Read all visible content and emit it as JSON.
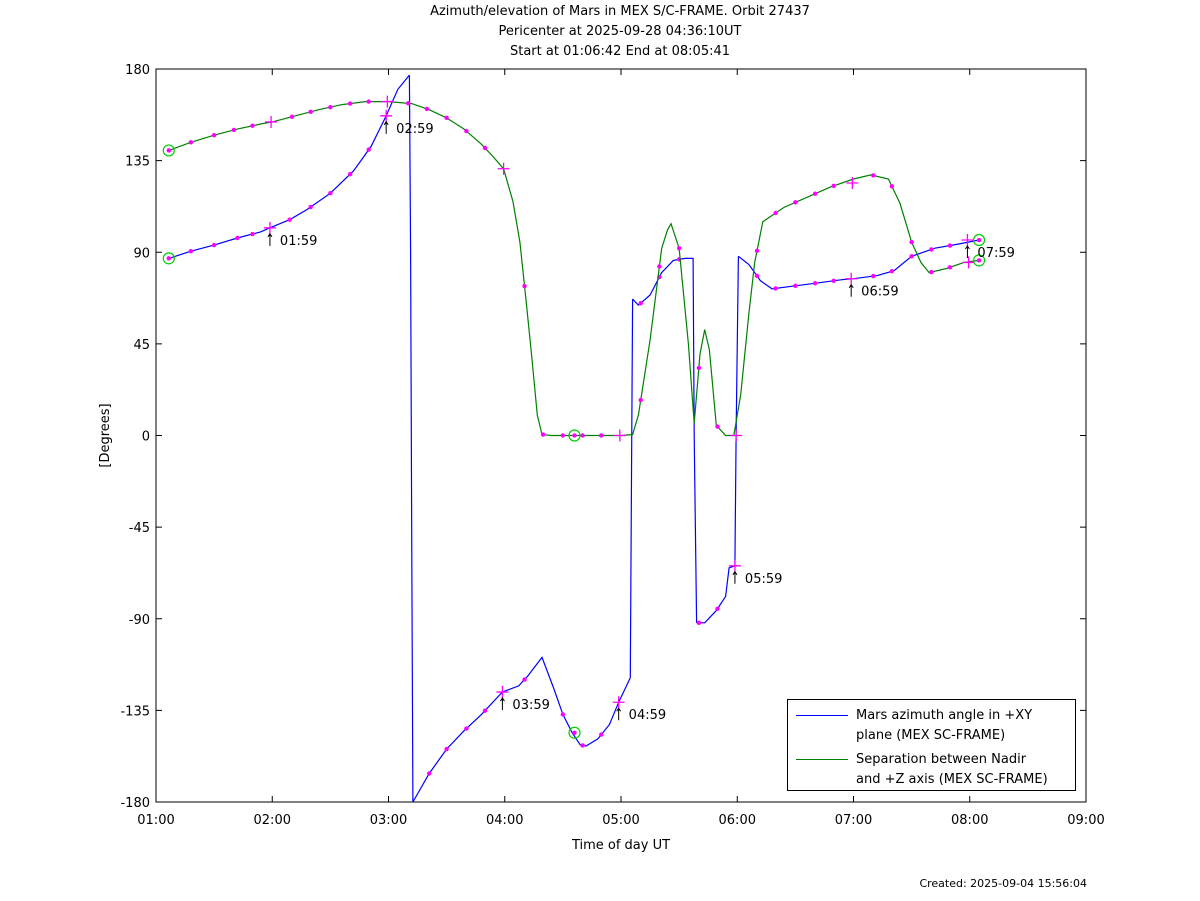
{
  "page": {
    "title_lines": [
      "Azimuth/elevation of Mars in MEX S/C-FRAME.  Orbit 27437",
      "Pericenter at 2025-09-28 04:36:10UT",
      "Start at 01:06:42 End at 08:05:41"
    ],
    "created": "Created: 2025-09-04 15:56:04"
  },
  "chart_data": {
    "type": "line",
    "title": "Azimuth/elevation of Mars in MEX S/C-FRAME.  Orbit 27437",
    "subtitle": [
      "Pericenter at 2025-09-28 04:36:10UT",
      "Start at 01:06:42 End at 08:05:41"
    ],
    "xlabel": "Time of day UT",
    "ylabel": "[Degrees]",
    "xlim": [
      1.0,
      9.0
    ],
    "ylim": [
      -180,
      180
    ],
    "x_unit": "hours",
    "x_ticks": [
      1,
      2,
      3,
      4,
      5,
      6,
      7,
      8,
      9
    ],
    "x_tick_labels": [
      "01:00",
      "02:00",
      "03:00",
      "04:00",
      "05:00",
      "06:00",
      "07:00",
      "08:00",
      "09:00"
    ],
    "y_ticks": [
      180,
      135,
      90,
      45,
      0,
      -45,
      -90,
      -135,
      -180
    ],
    "y_tick_labels": [
      "180",
      "135",
      "90",
      "45",
      "0",
      "-45",
      "-90",
      "-135",
      "-180"
    ],
    "grid": false,
    "legend_position": "bottom-right",
    "series": [
      {
        "name": "Mars azimuth angle in +XY plane (MEX SC-FRAME)",
        "legend_lines": [
          "Mars azimuth angle in +XY",
          "plane (MEX SC-FRAME)"
        ],
        "color": "#0000ff",
        "segments": [
          [
            [
              1.11,
              87
            ],
            [
              1.3,
              90.5
            ],
            [
              1.5,
              93.5
            ],
            [
              1.7,
              97
            ],
            [
              1.9,
              100
            ],
            [
              1.98,
              102
            ],
            [
              2.15,
              106
            ],
            [
              2.3,
              111
            ],
            [
              2.5,
              119
            ],
            [
              2.7,
              130
            ],
            [
              2.85,
              142
            ],
            [
              2.98,
              157
            ],
            [
              3.08,
              170
            ],
            [
              3.18,
              177
            ]
          ],
          [
            [
              3.18,
              177
            ],
            [
              3.19,
              90
            ],
            [
              3.2,
              -60
            ],
            [
              3.21,
              -180
            ]
          ],
          [
            [
              3.21,
              -180
            ],
            [
              3.35,
              -166
            ],
            [
              3.5,
              -154
            ],
            [
              3.65,
              -145
            ],
            [
              3.8,
              -137
            ],
            [
              3.98,
              -126
            ],
            [
              4.12,
              -123
            ],
            [
              4.2,
              -118
            ],
            [
              4.32,
              -109
            ],
            [
              4.42,
              -124
            ],
            [
              4.5,
              -137
            ],
            [
              4.58,
              -146
            ],
            [
              4.65,
              -152
            ],
            [
              4.7,
              -152.5
            ],
            [
              4.8,
              -149
            ],
            [
              4.9,
              -142
            ],
            [
              4.98,
              -131
            ],
            [
              5.08,
              -119
            ]
          ],
          [
            [
              5.08,
              -119
            ],
            [
              5.09,
              -20
            ],
            [
              5.1,
              67
            ]
          ],
          [
            [
              5.1,
              67
            ],
            [
              5.15,
              64
            ],
            [
              5.25,
              69
            ],
            [
              5.35,
              80
            ],
            [
              5.45,
              86
            ],
            [
              5.55,
              87
            ],
            [
              5.62,
              87
            ],
            [
              5.63,
              0
            ],
            [
              5.65,
              -92
            ]
          ],
          [
            [
              5.65,
              -92
            ],
            [
              5.72,
              -92
            ],
            [
              5.82,
              -86
            ],
            [
              5.9,
              -79
            ],
            [
              5.93,
              -65
            ],
            [
              5.98,
              -64
            ],
            [
              5.99,
              0
            ],
            [
              6.01,
              88
            ]
          ],
          [
            [
              6.01,
              88
            ],
            [
              6.1,
              84
            ],
            [
              6.2,
              76
            ],
            [
              6.3,
              72
            ],
            [
              6.5,
              73.5
            ],
            [
              6.7,
              75
            ],
            [
              6.9,
              76.5
            ],
            [
              7.0,
              77
            ],
            [
              7.2,
              78.5
            ],
            [
              7.35,
              81
            ],
            [
              7.5,
              88
            ],
            [
              7.7,
              92
            ],
            [
              7.9,
              94
            ],
            [
              8.08,
              96
            ]
          ]
        ],
        "markers_small": [
          1.3,
          1.5,
          1.7,
          1.83,
          2.15,
          2.33,
          2.5,
          2.67,
          2.83,
          3.35,
          3.5,
          3.67,
          3.83,
          4.17,
          4.5,
          4.67,
          4.83,
          5.17,
          5.33,
          5.5,
          5.67,
          5.83,
          6.17,
          6.33,
          6.5,
          6.67,
          6.83,
          7.17,
          7.33,
          7.5,
          7.67,
          7.83
        ],
        "markers_cross": [
          [
            1.98,
            102
          ],
          [
            2.98,
            157
          ],
          [
            3.98,
            -126
          ],
          [
            4.98,
            -131
          ],
          [
            5.98,
            -64
          ],
          [
            6.98,
            77
          ],
          [
            7.98,
            96
          ]
        ],
        "markers_circle": [
          [
            1.11,
            87
          ],
          [
            4.6,
            -146
          ],
          [
            8.08,
            96
          ]
        ]
      },
      {
        "name": "Separation between Nadir and +Z axis (MEX SC-FRAME)",
        "legend_lines": [
          "Separation between Nadir",
          "and +Z axis (MEX SC-FRAME)"
        ],
        "color": "#008000",
        "segments": [
          [
            [
              1.11,
              140
            ],
            [
              1.3,
              144
            ],
            [
              1.5,
              147.5
            ],
            [
              1.7,
              150.5
            ],
            [
              1.9,
              153
            ],
            [
              2.0,
              154
            ],
            [
              2.2,
              157
            ],
            [
              2.4,
              160
            ],
            [
              2.6,
              162.5
            ],
            [
              2.8,
              164
            ],
            [
              3.0,
              164
            ],
            [
              3.2,
              163
            ],
            [
              3.35,
              160
            ],
            [
              3.5,
              156
            ],
            [
              3.65,
              150.5
            ],
            [
              3.8,
              143
            ],
            [
              3.9,
              137
            ],
            [
              3.99,
              131
            ],
            [
              4.07,
              115
            ],
            [
              4.13,
              95
            ],
            [
              4.18,
              68
            ],
            [
              4.23,
              40
            ],
            [
              4.28,
              10
            ],
            [
              4.32,
              0.5
            ],
            [
              4.4,
              0
            ],
            [
              4.6,
              0
            ],
            [
              4.8,
              0
            ],
            [
              5.0,
              0
            ],
            [
              5.1,
              0.5
            ],
            [
              5.15,
              10
            ],
            [
              5.25,
              47
            ],
            [
              5.35,
              92
            ],
            [
              5.4,
              101
            ],
            [
              5.43,
              104
            ],
            [
              5.5,
              92
            ],
            [
              5.58,
              45
            ],
            [
              5.63,
              6
            ],
            [
              5.68,
              40
            ],
            [
              5.72,
              52
            ],
            [
              5.76,
              42
            ],
            [
              5.82,
              5
            ],
            [
              5.9,
              0
            ],
            [
              5.97,
              0
            ],
            [
              6.03,
              20
            ],
            [
              6.1,
              60
            ],
            [
              6.15,
              85
            ],
            [
              6.22,
              105
            ],
            [
              6.4,
              112
            ],
            [
              6.6,
              117
            ],
            [
              6.8,
              122
            ],
            [
              7.0,
              126
            ],
            [
              7.15,
              128
            ],
            [
              7.3,
              126
            ],
            [
              7.4,
              114
            ],
            [
              7.5,
              95
            ],
            [
              7.58,
              85
            ],
            [
              7.65,
              80
            ],
            [
              7.8,
              82
            ],
            [
              7.95,
              85
            ],
            [
              8.08,
              86
            ]
          ]
        ],
        "markers_small": [
          1.3,
          1.5,
          1.67,
          1.83,
          2.17,
          2.33,
          2.5,
          2.67,
          2.83,
          3.17,
          3.33,
          3.5,
          3.67,
          3.83,
          4.17,
          4.33,
          4.5,
          4.67,
          4.83,
          5.17,
          5.33,
          5.5,
          5.67,
          5.83,
          6.17,
          6.33,
          6.5,
          6.67,
          6.83,
          7.17,
          7.33,
          7.5,
          7.67,
          7.83
        ],
        "markers_cross": [
          [
            1.99,
            154
          ],
          [
            2.99,
            164
          ],
          [
            3.99,
            131
          ],
          [
            4.99,
            0
          ],
          [
            5.99,
            0
          ],
          [
            6.99,
            124
          ],
          [
            7.99,
            85
          ]
        ],
        "markers_circle": [
          [
            1.11,
            140
          ],
          [
            4.6,
            0
          ],
          [
            8.08,
            86
          ]
        ]
      }
    ],
    "annotations": [
      {
        "x": 1.98,
        "y": 102,
        "label": "01:59"
      },
      {
        "x": 2.98,
        "y": 157,
        "label": "02:59"
      },
      {
        "x": 3.98,
        "y": -126,
        "label": "03:59"
      },
      {
        "x": 4.98,
        "y": -131,
        "label": "04:59"
      },
      {
        "x": 5.98,
        "y": -64,
        "label": "05:59"
      },
      {
        "x": 6.98,
        "y": 77,
        "label": "06:59"
      },
      {
        "x": 7.98,
        "y": 96,
        "label": "07:59"
      }
    ]
  }
}
